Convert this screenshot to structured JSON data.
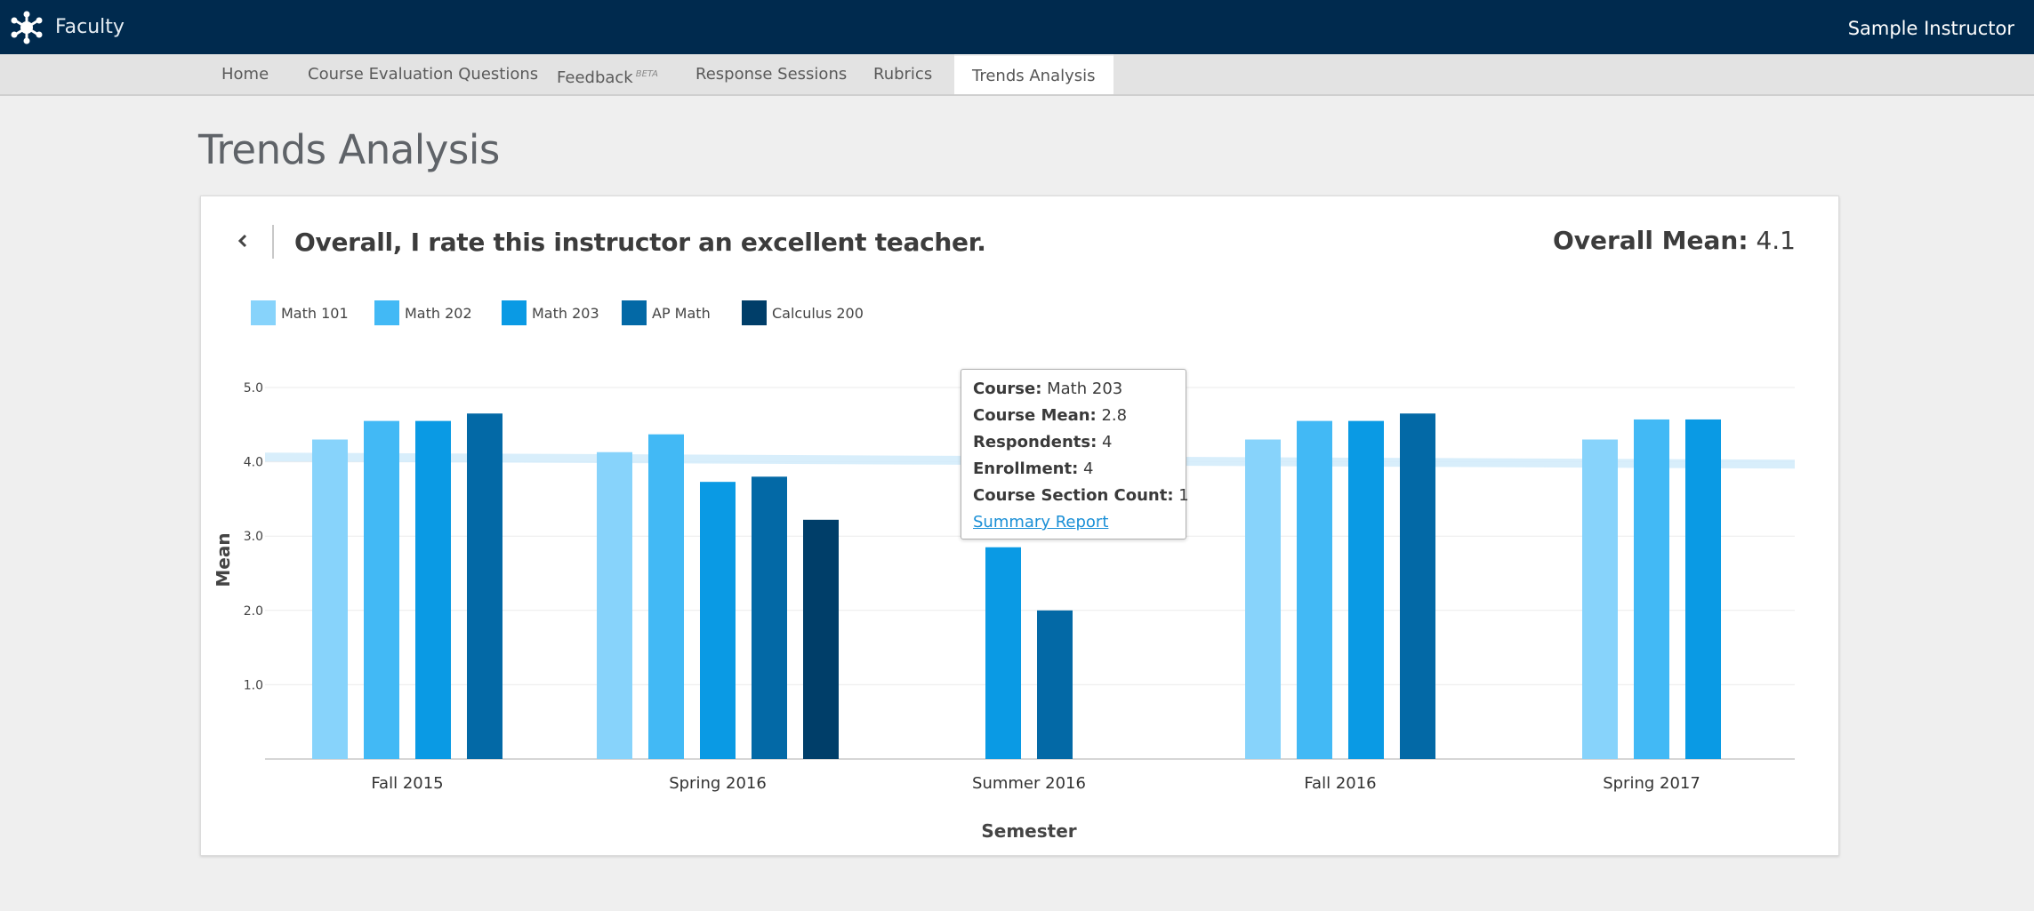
{
  "header": {
    "app_name": "Faculty",
    "user_name": "Sample Instructor"
  },
  "nav": {
    "items": [
      {
        "label": "Home",
        "sup": ""
      },
      {
        "label": "Course Evaluation Questions",
        "sup": ""
      },
      {
        "label": "Feedback",
        "sup": "BETA"
      },
      {
        "label": "Response Sessions",
        "sup": ""
      },
      {
        "label": "Rubrics",
        "sup": ""
      },
      {
        "label": "Trends Analysis",
        "sup": ""
      }
    ],
    "active_index": 5
  },
  "page": {
    "title": "Trends Analysis"
  },
  "card": {
    "question": "Overall, I rate this instructor an excellent teacher.",
    "overall_mean_label": "Overall Mean:",
    "overall_mean_value": "4.1"
  },
  "tooltip": {
    "course_label": "Course:",
    "course_value": "Math 203",
    "mean_label": "Course Mean:",
    "mean_value": "2.8",
    "respondents_label": "Respondents:",
    "respondents_value": "4",
    "enrollment_label": "Enrollment:",
    "enrollment_value": "4",
    "section_label": "Course Section Count:",
    "section_value": "1",
    "link_label": "Summary Report"
  },
  "chart_data": {
    "type": "bar",
    "xlabel": "Semester",
    "ylabel": "Mean",
    "ylim": [
      0,
      5
    ],
    "yticks": [
      "1.0",
      "2.0",
      "3.0",
      "4.0",
      "5.0"
    ],
    "grid": true,
    "legend_placement": "top-left",
    "overall_mean_line": 4.1,
    "categories": [
      "Fall 2015",
      "Spring 2016",
      "Summer 2016",
      "Fall 2016",
      "Spring 2017"
    ],
    "series": [
      {
        "name": "Math 101",
        "color": "#87d3fb",
        "values": [
          4.3,
          4.13,
          null,
          4.3,
          4.3
        ]
      },
      {
        "name": "Math 202",
        "color": "#42b9f5",
        "values": [
          4.55,
          4.37,
          null,
          4.55,
          4.57
        ]
      },
      {
        "name": "Math 203",
        "color": "#0a9ae4",
        "values": [
          4.55,
          3.73,
          2.85,
          4.55,
          4.57
        ]
      },
      {
        "name": "AP Math",
        "color": "#0369a6",
        "values": [
          4.65,
          3.8,
          2.0,
          4.65,
          null
        ]
      },
      {
        "name": "Calculus 200",
        "color": "#003e69",
        "values": [
          null,
          3.22,
          null,
          null,
          null
        ]
      }
    ]
  }
}
